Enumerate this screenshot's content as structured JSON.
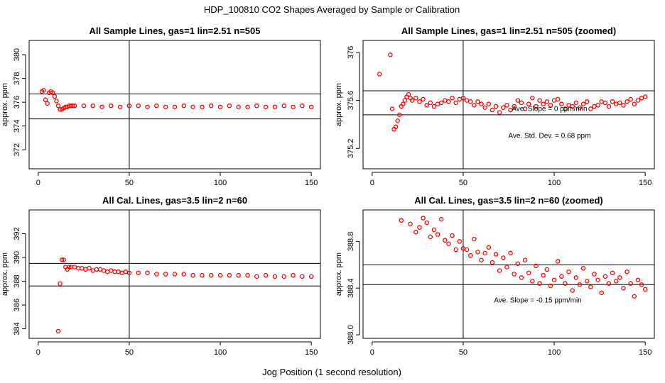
{
  "main_title": "HDP_100810  CO2 Shapes Averaged by Sample or Calibration",
  "x_label": "Jog Position (1 second resolution)",
  "colors": {
    "points": "#ff0000",
    "lines": "#000000",
    "frame": "#000000"
  },
  "chart_data": [
    {
      "type": "scatter",
      "title": "All Sample Lines, gas=1 lin=2.51 n=505",
      "ylabel": "approx. ppm",
      "xlim": [
        -5,
        155
      ],
      "ylim": [
        370.4,
        381.2
      ],
      "xticks": [
        0,
        50,
        100,
        150
      ],
      "yticks": [
        372,
        374,
        376,
        378,
        380
      ],
      "vline": 50,
      "hlines": [
        374.6,
        376.7
      ],
      "annotations": [],
      "series": [
        {
          "x": [
            2,
            3,
            4,
            5,
            6,
            7,
            8,
            9,
            10,
            11,
            12,
            13,
            14,
            15,
            16,
            17,
            18,
            19,
            20,
            25,
            30,
            35,
            40,
            45,
            50,
            55,
            60,
            65,
            70,
            75,
            80,
            85,
            90,
            95,
            100,
            105,
            110,
            115,
            120,
            125,
            130,
            135,
            140,
            145,
            150
          ],
          "y": [
            376.9,
            377.0,
            376.2,
            375.9,
            376.8,
            376.9,
            376.8,
            376.5,
            376.1,
            375.7,
            375.4,
            375.4,
            375.5,
            375.6,
            375.6,
            375.7,
            375.7,
            375.7,
            375.7,
            375.7,
            375.7,
            375.6,
            375.7,
            375.6,
            375.7,
            375.7,
            375.6,
            375.7,
            375.6,
            375.6,
            375.7,
            375.6,
            375.6,
            375.7,
            375.6,
            375.7,
            375.6,
            375.6,
            375.7,
            375.6,
            375.6,
            375.7,
            375.6,
            375.7,
            375.6
          ]
        }
      ]
    },
    {
      "type": "scatter",
      "title": "All Sample Lines, gas=1 lin=2.51 n=505 (zoomed)",
      "ylabel": "approx. ppm",
      "xlim": [
        -5,
        155
      ],
      "ylim": [
        375.03,
        376.1
      ],
      "xticks": [
        0,
        50,
        100,
        150
      ],
      "yticks": [
        375.2,
        375.6,
        376.0
      ],
      "vline": 50,
      "hlines": [
        375.48,
        375.68
      ],
      "annotations": [
        "Ave. Slope =  0  ppm/min",
        "Ave. Std. Dev. =  0.68  ppm"
      ],
      "series": [
        {
          "x": [
            4,
            10,
            11,
            12,
            13,
            14,
            15,
            16,
            17,
            18,
            19,
            20,
            21,
            22,
            24,
            26,
            28,
            30,
            32,
            34,
            36,
            38,
            40,
            42,
            44,
            46,
            48,
            50,
            52,
            54,
            56,
            58,
            60,
            62,
            64,
            66,
            68,
            70,
            72,
            74,
            76,
            78,
            80,
            82,
            84,
            86,
            88,
            90,
            92,
            94,
            96,
            98,
            100,
            102,
            104,
            106,
            108,
            110,
            112,
            114,
            116,
            118,
            120,
            122,
            124,
            126,
            128,
            130,
            132,
            134,
            136,
            138,
            140,
            142,
            144,
            146,
            148,
            150
          ],
          "y": [
            375.82,
            375.98,
            375.53,
            375.36,
            375.38,
            375.43,
            375.48,
            375.55,
            375.57,
            375.6,
            375.63,
            375.65,
            375.62,
            375.6,
            375.62,
            375.59,
            375.61,
            375.56,
            375.58,
            375.55,
            375.57,
            375.58,
            375.6,
            375.59,
            375.62,
            375.58,
            375.61,
            375.62,
            375.6,
            375.59,
            375.56,
            375.59,
            375.57,
            375.54,
            375.57,
            375.52,
            375.55,
            375.5,
            375.54,
            375.56,
            375.52,
            375.55,
            375.6,
            375.58,
            375.53,
            375.57,
            375.62,
            375.55,
            375.6,
            375.57,
            375.59,
            375.56,
            375.6,
            375.61,
            375.57,
            375.53,
            375.56,
            375.55,
            375.58,
            375.54,
            375.57,
            375.59,
            375.53,
            375.55,
            375.56,
            375.59,
            375.58,
            375.55,
            375.59,
            375.57,
            375.58,
            375.56,
            375.59,
            375.61,
            375.57,
            375.6,
            375.62,
            375.63
          ]
        }
      ]
    },
    {
      "type": "scatter",
      "title": "All Cal. Lines, gas=3.5 lin=2 n=60",
      "ylabel": "approx. ppm",
      "xlim": [
        -5,
        155
      ],
      "ylim": [
        383.2,
        394.0
      ],
      "xticks": [
        0,
        50,
        100,
        150
      ],
      "yticks": [
        384,
        386,
        388,
        390,
        392
      ],
      "vline": 50,
      "hlines": [
        387.6,
        389.5
      ],
      "annotations": [],
      "series": [
        {
          "x": [
            11,
            12,
            13,
            14,
            15,
            16,
            17,
            18,
            20,
            22,
            24,
            26,
            28,
            30,
            32,
            34,
            36,
            38,
            40,
            42,
            44,
            46,
            48,
            50,
            55,
            60,
            65,
            70,
            75,
            80,
            85,
            90,
            95,
            100,
            105,
            110,
            115,
            120,
            125,
            130,
            135,
            140,
            145,
            150
          ],
          "y": [
            383.8,
            387.8,
            389.8,
            389.8,
            389.2,
            389.0,
            389.2,
            389.2,
            389.2,
            389.1,
            389.1,
            389.0,
            389.1,
            388.9,
            389.0,
            389.0,
            388.9,
            388.8,
            388.9,
            388.8,
            388.8,
            388.7,
            388.8,
            388.7,
            388.7,
            388.7,
            388.6,
            388.6,
            388.6,
            388.6,
            388.5,
            388.5,
            388.5,
            388.5,
            388.5,
            388.5,
            388.5,
            388.4,
            388.5,
            388.4,
            388.4,
            388.5,
            388.4,
            388.4
          ]
        }
      ]
    },
    {
      "type": "scatter",
      "title": "All Cal. Lines, gas=3.5 lin=2 n=60 (zoomed)",
      "ylabel": "approx. ppm",
      "xlim": [
        -5,
        155
      ],
      "ylim": [
        387.97,
        389.07
      ],
      "xticks": [
        0,
        50,
        100,
        150
      ],
      "yticks": [
        388.0,
        388.4,
        388.8
      ],
      "vline": 50,
      "hlines": [
        388.43,
        388.6
      ],
      "annotations": [
        "Ave. Slope =  -0.15  ppm/min"
      ],
      "series": [
        {
          "x": [
            16,
            21,
            24,
            26,
            28,
            30,
            32,
            34,
            36,
            38,
            40,
            42,
            44,
            46,
            48,
            50,
            52,
            54,
            56,
            58,
            60,
            62,
            64,
            66,
            68,
            70,
            72,
            74,
            76,
            78,
            80,
            82,
            84,
            86,
            88,
            90,
            92,
            94,
            96,
            98,
            100,
            102,
            104,
            106,
            108,
            110,
            112,
            114,
            116,
            118,
            120,
            122,
            124,
            126,
            128,
            130,
            132,
            134,
            136,
            138,
            140,
            142,
            144,
            146,
            148,
            150
          ],
          "y": [
            388.98,
            388.95,
            388.88,
            388.92,
            389.0,
            388.96,
            388.84,
            388.9,
            388.86,
            388.99,
            388.81,
            388.78,
            388.85,
            388.73,
            388.8,
            388.74,
            388.73,
            388.68,
            388.82,
            388.71,
            388.64,
            388.7,
            388.75,
            388.62,
            388.69,
            388.55,
            388.66,
            388.58,
            388.7,
            388.52,
            388.61,
            388.49,
            388.64,
            388.53,
            388.46,
            388.59,
            388.44,
            388.51,
            388.56,
            388.42,
            388.47,
            388.63,
            388.5,
            388.44,
            388.54,
            388.38,
            388.49,
            388.43,
            388.57,
            388.46,
            388.41,
            388.52,
            388.47,
            388.36,
            388.5,
            388.44,
            388.53,
            388.46,
            388.49,
            388.4,
            388.54,
            388.44,
            388.33,
            388.47,
            388.43,
            388.39
          ]
        }
      ]
    }
  ]
}
